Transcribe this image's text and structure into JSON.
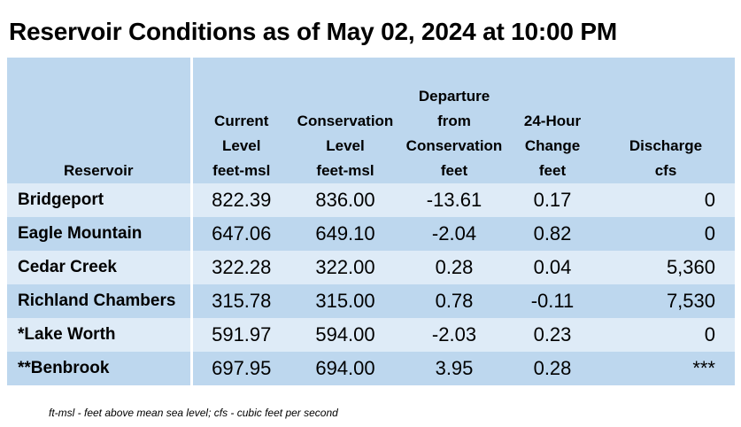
{
  "title": "Reservoir Conditions as of May 02, 2024 at 10:00 PM",
  "headers": {
    "reservoir": "Reservoir",
    "current": [
      "Current",
      "Level",
      "feet-msl"
    ],
    "conservation": [
      "Conservation",
      "Level",
      "feet-msl"
    ],
    "departure": [
      "Departure",
      "from",
      "Conservation",
      "feet"
    ],
    "change": [
      "24-Hour",
      "Change",
      "feet"
    ],
    "discharge": [
      "Discharge",
      "cfs"
    ]
  },
  "rows": [
    {
      "name": "Bridgeport",
      "current": "822.39",
      "conservation": "836.00",
      "departure": "-13.61",
      "change": "0.17",
      "discharge": "0"
    },
    {
      "name": "Eagle Mountain",
      "current": "647.06",
      "conservation": "649.10",
      "departure": "-2.04",
      "change": "0.82",
      "discharge": "0"
    },
    {
      "name": "Cedar Creek",
      "current": "322.28",
      "conservation": "322.00",
      "departure": "0.28",
      "change": "0.04",
      "discharge": "5,360"
    },
    {
      "name": "Richland Chambers",
      "current": "315.78",
      "conservation": "315.00",
      "departure": "0.78",
      "change": "-0.11",
      "discharge": "7,530"
    },
    {
      "name": "*Lake Worth",
      "current": "591.97",
      "conservation": "594.00",
      "departure": "-2.03",
      "change": "0.23",
      "discharge": "0"
    },
    {
      "name": "**Benbrook",
      "current": "697.95",
      "conservation": "694.00",
      "departure": "3.95",
      "change": "0.28",
      "discharge": "***"
    }
  ],
  "footnote": "ft-msl - feet above mean sea level; cfs - cubic feet per second",
  "colors": {
    "header_bg": "#bdd7ee",
    "row_light": "#deebf7",
    "row_dark": "#bdd7ee"
  }
}
